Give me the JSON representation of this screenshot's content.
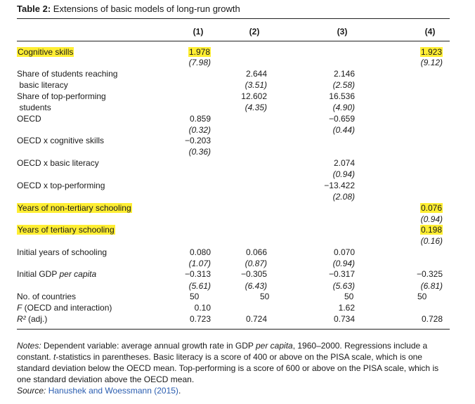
{
  "title": {
    "prefix": "Table 2:",
    "text": "Extensions of basic models of long-run growth"
  },
  "columns": [
    "(1)",
    "(2)",
    "(3)",
    "(4)"
  ],
  "rows": {
    "cognitive": {
      "label": "Cognitive skills",
      "c1": "1.978",
      "c1se": "(7.98)",
      "c4": "1.923",
      "c4se": "(9.12)"
    },
    "basic": {
      "label1": "Share of students reaching",
      "label2": "basic literacy",
      "c2": "2.644",
      "c2se": "(3.51)",
      "c3": "2.146",
      "c3se": "(2.58)"
    },
    "top": {
      "label1": "Share of top-performing",
      "label2": "students",
      "c2": "12.602",
      "c2se": "(4.35)",
      "c3": "16.536",
      "c3se": "(4.90)"
    },
    "oecd": {
      "label": "OECD",
      "c1": "0.859",
      "c1se": "(0.32)",
      "c3": "−0.659",
      "c3se": "(0.44)"
    },
    "oecd_cog": {
      "label": "OECD x cognitive skills",
      "c1": "−0.203",
      "c1se": "(0.36)"
    },
    "oecd_basic": {
      "label": "OECD x basic literacy",
      "c3": "2.074",
      "c3se": "(0.94)"
    },
    "oecd_top": {
      "label": "OECD x top-performing",
      "c3": "−13.422",
      "c3se": "(2.08)"
    },
    "nontertiary": {
      "label": "Years of non-tertiary schooling",
      "c4": "0.076",
      "c4se": "(0.94)"
    },
    "tertiary": {
      "label": "Years of tertiary schooling",
      "c4": "0.198",
      "c4se": "(0.16)"
    },
    "initial_school": {
      "label": "Initial years of schooling",
      "c1": "0.080",
      "c1se": "(1.07)",
      "c2": "0.066",
      "c2se": "(0.87)",
      "c3": "0.070",
      "c3se": "(0.94)"
    },
    "initial_gdp": {
      "label_a": "Initial GDP ",
      "label_b": "per capita",
      "c1": "−0.313",
      "c1se": "(5.61)",
      "c2": "−0.305",
      "c2se": "(6.43)",
      "c3": "−0.317",
      "c3se": "(5.63)",
      "c4": "−0.325",
      "c4se": "(6.81)"
    },
    "countries": {
      "label": "No. of countries",
      "c1": "50",
      "c2": "50",
      "c3": "50",
      "c4": "50"
    },
    "ftest": {
      "label_a": "F",
      "label_b": " (OECD and interaction)",
      "c1": "0.10",
      "c3": "1.62"
    },
    "r2": {
      "label_a": "R²",
      "label_b": " (adj.)",
      "c1": "0.723",
      "c2": "0.724",
      "c3": "0.734",
      "c4": "0.728"
    }
  },
  "notes": {
    "prefix": "Notes:",
    "p1": " Dependent variable: average annual growth rate in GDP ",
    "p1_italic": "per capita",
    "p2": ", 1960–2000. Regressions include a constant. ",
    "p2_italic": "t",
    "p3": "-statistics in parentheses. Basic literacy is a score of 400 or above on the PISA scale, which is one standard deviation below the OECD mean. Top-performing is a score of 600 or above on the PISA scale, which is one standard deviation above the OECD mean.",
    "source_label": "Source:",
    "source": "Hanushek and Woessmann (2015)",
    "source_end": "."
  },
  "highlight_color": "#ffee33"
}
